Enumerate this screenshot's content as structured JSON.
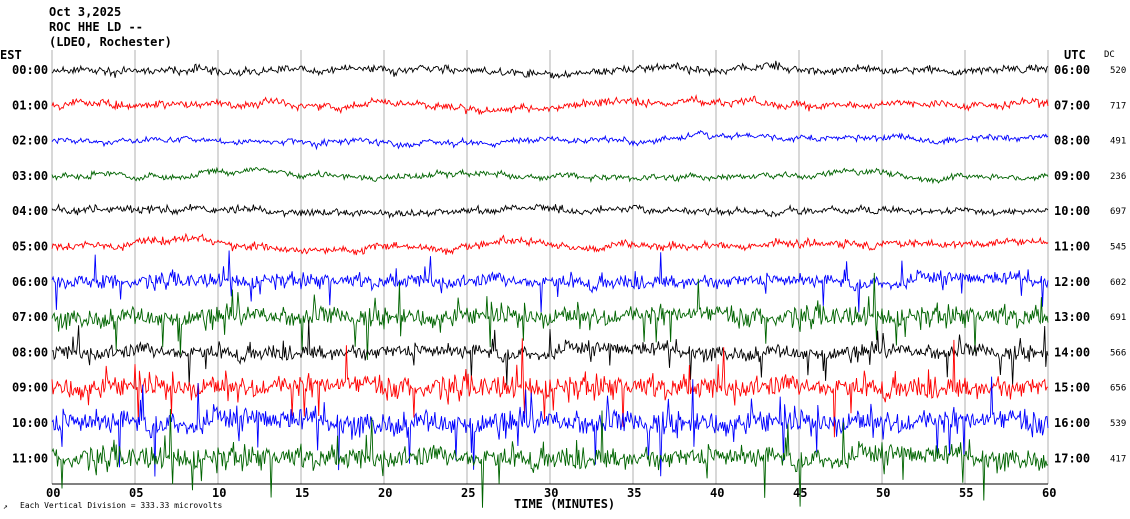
{
  "header": {
    "date": "Oct 3,2025",
    "station": "ROC HHE LD --",
    "network": "(LDEO, Rochester)"
  },
  "left_axis_title": "EST",
  "right_axis_title": "UTC",
  "dc_title": "DC",
  "footer_note": "Each Vertical Division = 333.33 microvolts",
  "colors": {
    "black": "#000000",
    "red": "#ff0000",
    "blue": "#0000ff",
    "green": "#006400",
    "grid": "#b0b0b0"
  },
  "chart_data": {
    "type": "line",
    "title": "ROC HHE LD --",
    "xlabel": "TIME (MINUTES)",
    "ylabel": "",
    "xlim": [
      0,
      60
    ],
    "x_ticks": [
      "00",
      "05",
      "10",
      "15",
      "20",
      "25",
      "30",
      "35",
      "40",
      "45",
      "50",
      "55",
      "60"
    ],
    "grid": "vertical",
    "series": [
      {
        "est": "00:00",
        "utc": "06:00",
        "dc": "520",
        "color": "black",
        "noise": 0.6
      },
      {
        "est": "01:00",
        "utc": "07:00",
        "dc": "717",
        "color": "red",
        "noise": 0.6
      },
      {
        "est": "02:00",
        "utc": "08:00",
        "dc": "491",
        "color": "blue",
        "noise": 0.45
      },
      {
        "est": "03:00",
        "utc": "09:00",
        "dc": "236",
        "color": "green",
        "noise": 0.45
      },
      {
        "est": "04:00",
        "utc": "10:00",
        "dc": "697",
        "color": "black",
        "noise": 0.55
      },
      {
        "est": "05:00",
        "utc": "11:00",
        "dc": "545",
        "color": "red",
        "noise": 0.6
      },
      {
        "est": "06:00",
        "utc": "12:00",
        "dc": "602",
        "color": "blue",
        "noise": 1.1
      },
      {
        "est": "07:00",
        "utc": "13:00",
        "dc": "691",
        "color": "green",
        "noise": 1.6
      },
      {
        "est": "08:00",
        "utc": "14:00",
        "dc": "566",
        "color": "black",
        "noise": 1.2
      },
      {
        "est": "09:00",
        "utc": "15:00",
        "dc": "656",
        "color": "red",
        "noise": 1.8
      },
      {
        "est": "10:00",
        "utc": "16:00",
        "dc": "539",
        "color": "blue",
        "noise": 2.0
      },
      {
        "est": "11:00",
        "utc": "17:00",
        "dc": "417",
        "color": "green",
        "noise": 1.8
      }
    ]
  }
}
